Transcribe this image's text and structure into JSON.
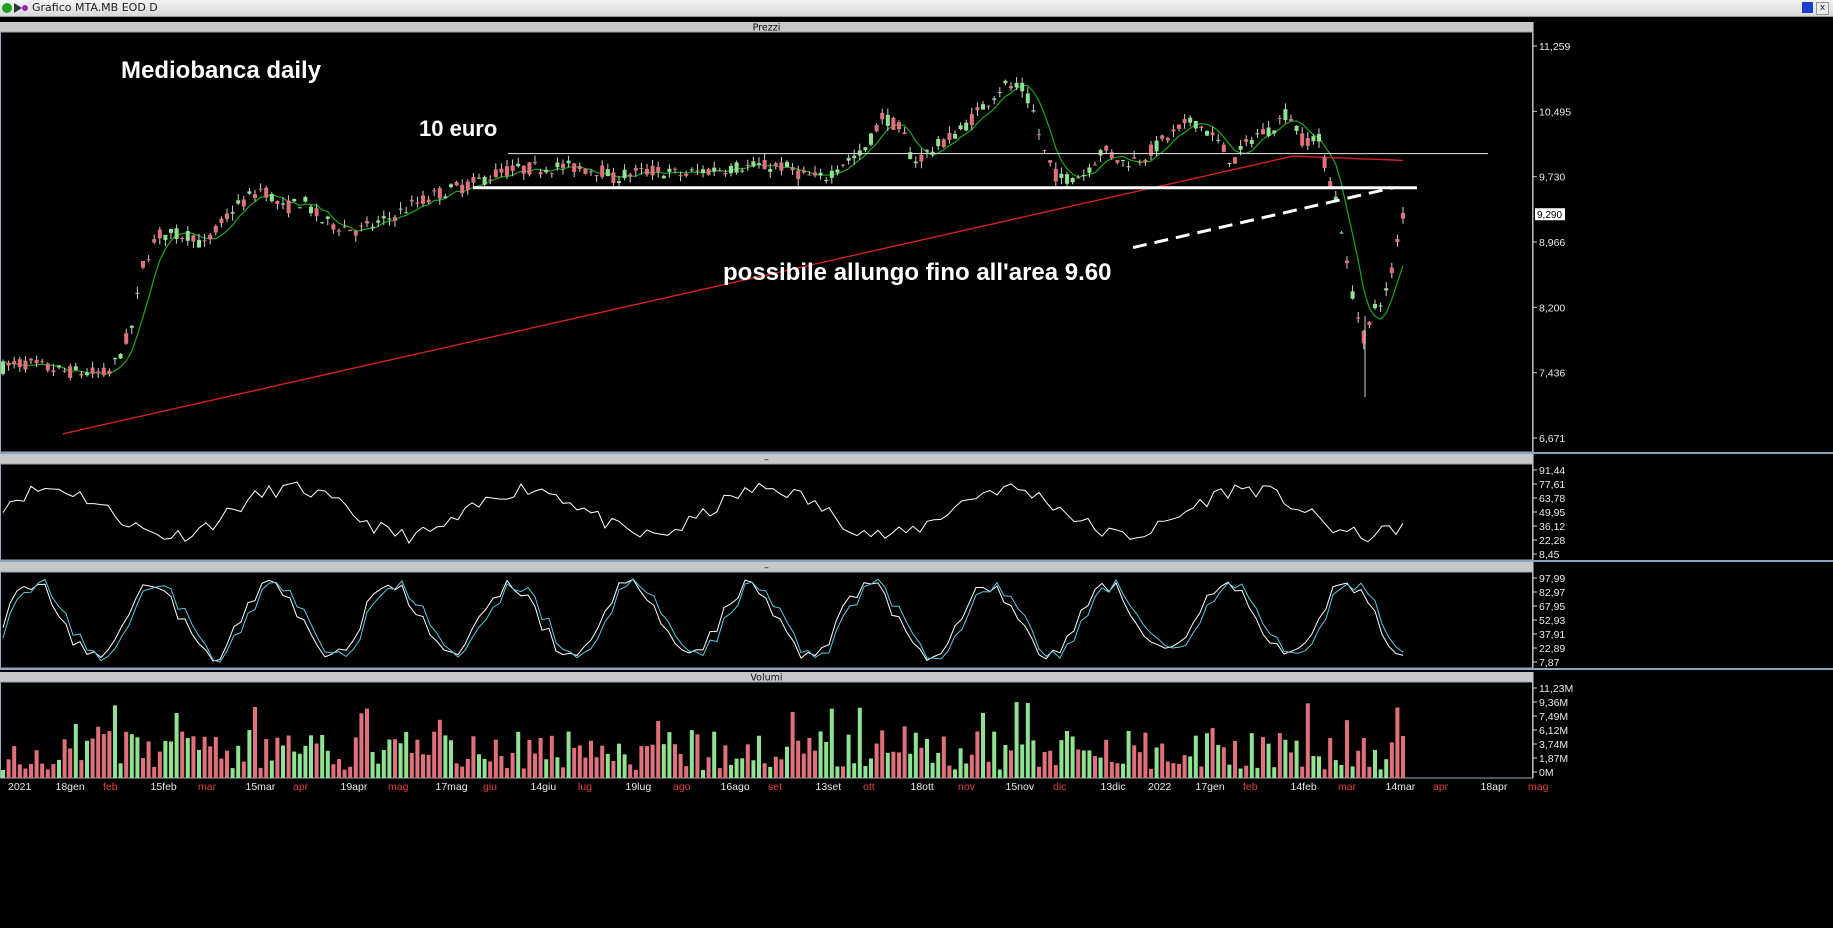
{
  "window": {
    "title": "Grafico MTA.MB EOD D",
    "close_glyph": "x"
  },
  "panels": {
    "prices_title": "Prezzi",
    "rsi_title": "–",
    "stoch_title": "–",
    "volume_title": "Volumi"
  },
  "annotations": {
    "chart_title": "Mediobanca daily",
    "resistance_label": "10 euro",
    "projection_label": "possibile allungo fino all'area 9.60"
  },
  "price_axis": [
    "11,259",
    "10,495",
    "9,730",
    "8,966",
    "8,200",
    "7,436",
    "6,671"
  ],
  "last_price_tag": "9,290",
  "rsi_axis": [
    "91,44",
    "77,61",
    "63,78",
    "49,95",
    "36,12",
    "22,28",
    "8,45"
  ],
  "stoch_axis": [
    "97,99",
    "82,97",
    "67,95",
    "52,93",
    "37,91",
    "22,89",
    "7,87"
  ],
  "volume_axis": [
    "11,23M",
    "9,36M",
    "7,49M",
    "6,12M",
    "3,74M",
    "1,87M",
    "0M"
  ],
  "time_axis": [
    {
      "label": "2021",
      "red": false
    },
    {
      "label": "18gen",
      "red": false
    },
    {
      "label": "feb",
      "red": true
    },
    {
      "label": "15feb",
      "red": false
    },
    {
      "label": "mar",
      "red": true
    },
    {
      "label": "15mar",
      "red": false
    },
    {
      "label": "apr",
      "red": true
    },
    {
      "label": "19apr",
      "red": false
    },
    {
      "label": "mag",
      "red": true
    },
    {
      "label": "17mag",
      "red": false
    },
    {
      "label": "giu",
      "red": true
    },
    {
      "label": "14giu",
      "red": false
    },
    {
      "label": "lug",
      "red": true
    },
    {
      "label": "19lug",
      "red": false
    },
    {
      "label": "ago",
      "red": true
    },
    {
      "label": "16ago",
      "red": false
    },
    {
      "label": "set",
      "red": true
    },
    {
      "label": "13set",
      "red": false
    },
    {
      "label": "ott",
      "red": true
    },
    {
      "label": "18ott",
      "red": false
    },
    {
      "label": "nov",
      "red": true
    },
    {
      "label": "15nov",
      "red": false
    },
    {
      "label": "dic",
      "red": true
    },
    {
      "label": "13dic",
      "red": false
    },
    {
      "label": "2022",
      "red": false
    },
    {
      "label": "17gen",
      "red": false
    },
    {
      "label": "feb",
      "red": true
    },
    {
      "label": "14feb",
      "red": false
    },
    {
      "label": "mar",
      "red": true
    },
    {
      "label": "14mar",
      "red": false
    },
    {
      "label": "apr",
      "red": true
    },
    {
      "label": "18apr",
      "red": false
    },
    {
      "label": "mag",
      "red": true
    }
  ],
  "chart_data": {
    "type": "line",
    "price_range": [
      6.671,
      11.259
    ],
    "price_key_points": [
      [
        0,
        7.5
      ],
      [
        20,
        7.55
      ],
      [
        60,
        7.45
      ],
      [
        105,
        7.42
      ],
      [
        115,
        7.6
      ],
      [
        130,
        8.0
      ],
      [
        140,
        8.7
      ],
      [
        155,
        9.05
      ],
      [
        190,
        9.05
      ],
      [
        200,
        8.9
      ],
      [
        230,
        9.35
      ],
      [
        260,
        9.6
      ],
      [
        280,
        9.35
      ],
      [
        300,
        9.45
      ],
      [
        320,
        9.2
      ],
      [
        355,
        9.1
      ],
      [
        380,
        9.2
      ],
      [
        410,
        9.4
      ],
      [
        440,
        9.55
      ],
      [
        470,
        9.65
      ],
      [
        500,
        9.8
      ],
      [
        520,
        9.82
      ],
      [
        560,
        9.85
      ],
      [
        600,
        9.8
      ],
      [
        610,
        9.7
      ],
      [
        620,
        9.75
      ],
      [
        650,
        9.8
      ],
      [
        680,
        9.75
      ],
      [
        700,
        9.8
      ],
      [
        740,
        9.85
      ],
      [
        780,
        9.85
      ],
      [
        800,
        9.75
      ],
      [
        820,
        9.7
      ],
      [
        840,
        9.9
      ],
      [
        860,
        10.0
      ],
      [
        880,
        10.45
      ],
      [
        900,
        10.25
      ],
      [
        910,
        9.9
      ],
      [
        930,
        10.05
      ],
      [
        960,
        10.3
      ],
      [
        980,
        10.55
      ],
      [
        1000,
        10.8
      ],
      [
        1020,
        10.75
      ],
      [
        1030,
        10.5
      ],
      [
        1040,
        10.05
      ],
      [
        1055,
        9.7
      ],
      [
        1080,
        9.75
      ],
      [
        1100,
        10.05
      ],
      [
        1120,
        9.9
      ],
      [
        1140,
        9.95
      ],
      [
        1160,
        10.15
      ],
      [
        1190,
        10.4
      ],
      [
        1210,
        10.2
      ],
      [
        1230,
        9.9
      ],
      [
        1250,
        10.2
      ],
      [
        1270,
        10.3
      ],
      [
        1285,
        10.5
      ],
      [
        1300,
        10.15
      ],
      [
        1315,
        10.2
      ],
      [
        1325,
        9.75
      ],
      [
        1335,
        9.4
      ],
      [
        1345,
        8.6
      ],
      [
        1355,
        8.1
      ],
      [
        1362,
        7.8
      ],
      [
        1372,
        8.2
      ],
      [
        1385,
        8.4
      ],
      [
        1395,
        9.0
      ],
      [
        1400,
        9.29
      ]
    ],
    "resistance_level": 10.0,
    "horizontal_level": 9.6,
    "trendline_from": [
      1130,
      8.9
    ],
    "trendline_to": [
      1390,
      9.6
    ],
    "sma_label": "",
    "series": [
      {
        "role": "price",
        "color": "#ffffff"
      },
      {
        "role": "ma_short",
        "color": "#1aa61a"
      },
      {
        "role": "ma_long",
        "color": "#d42020"
      },
      {
        "role": "volume",
        "up_color": "#8fe28f",
        "down_color": "#e0707a"
      }
    ]
  }
}
